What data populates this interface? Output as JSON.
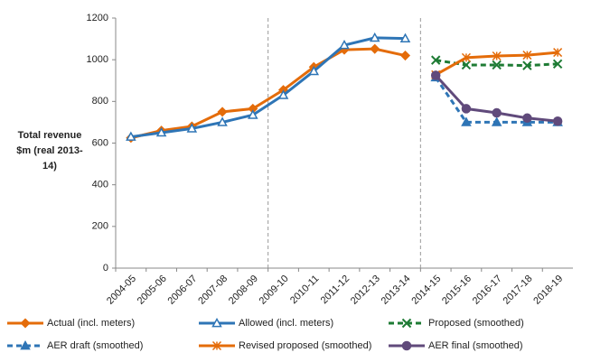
{
  "chart_data": {
    "type": "line",
    "y_label": "Total revenue $m (real 2013-14)",
    "categories": [
      "2004-05",
      "2005-06",
      "2006-07",
      "2007-08",
      "2008-09",
      "2009-10",
      "2010-11",
      "2011-12",
      "2012-13",
      "2013-14",
      "2014-15",
      "2015-16",
      "2016-17",
      "2017-18",
      "2018-19"
    ],
    "ylim": [
      0,
      1200
    ],
    "yticks": [
      0,
      200,
      400,
      600,
      800,
      1000,
      1200
    ],
    "series": [
      {
        "name": "Actual (incl. meters)",
        "color": "#e46c0a",
        "dash": false,
        "marker": "diamond",
        "values": [
          625,
          660,
          680,
          750,
          765,
          855,
          965,
          1048,
          1052,
          1020,
          null,
          null,
          null,
          null,
          null
        ]
      },
      {
        "name": "Allowed (incl. meters)",
        "color": "#2e75b6",
        "dash": false,
        "marker": "triangle-open",
        "values": [
          630,
          650,
          670,
          700,
          735,
          830,
          945,
          1070,
          1105,
          1102,
          null,
          null,
          null,
          null,
          null
        ]
      },
      {
        "name": "Proposed (smoothed)",
        "color": "#1e7b34",
        "dash": true,
        "marker": "x",
        "values": [
          null,
          null,
          null,
          null,
          null,
          null,
          null,
          null,
          null,
          null,
          998,
          975,
          975,
          972,
          980
        ]
      },
      {
        "name": "AER draft (smoothed)",
        "color": "#2e75b6",
        "dash": true,
        "marker": "triangle",
        "values": [
          null,
          null,
          null,
          null,
          null,
          null,
          null,
          null,
          null,
          null,
          915,
          700,
          700,
          700,
          700
        ]
      },
      {
        "name": "Revised proposed (smoothed)",
        "color": "#e46c0a",
        "dash": false,
        "marker": "asterisk",
        "values": [
          null,
          null,
          null,
          null,
          null,
          null,
          null,
          null,
          null,
          null,
          928,
          1010,
          1018,
          1022,
          1035
        ]
      },
      {
        "name": "AER final (smoothed)",
        "color": "#604a7b",
        "dash": false,
        "marker": "circle",
        "values": [
          null,
          null,
          null,
          null,
          null,
          null,
          null,
          null,
          null,
          null,
          925,
          765,
          745,
          720,
          705
        ]
      }
    ]
  }
}
